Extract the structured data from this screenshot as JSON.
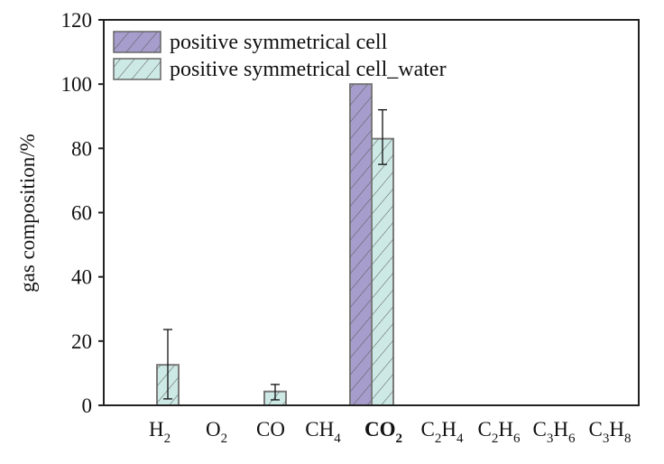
{
  "chart_data": {
    "type": "bar",
    "title": "",
    "xlabel": "",
    "ylabel": "gas composition/%",
    "ylim": [
      0,
      120
    ],
    "yticks": [
      0,
      20,
      40,
      60,
      80,
      100,
      120
    ],
    "grid": false,
    "legend_placement": "top-left",
    "categories": [
      "H2",
      "O2",
      "CO",
      "CH4",
      "CO2",
      "C2H4",
      "C2H6",
      "C3H6",
      "C3H8"
    ],
    "category_labels": [
      {
        "main": "H",
        "sub": "2"
      },
      {
        "main": "O",
        "sub": "2"
      },
      {
        "main": "CO",
        "sub": ""
      },
      {
        "main": "CH",
        "sub": "4"
      },
      {
        "main": "CO",
        "sub": "2",
        "bold": true
      },
      {
        "main": "C",
        "sub": "2",
        "main2": "H",
        "sub2": "4"
      },
      {
        "main": "C",
        "sub": "2",
        "main2": "H",
        "sub2": "6"
      },
      {
        "main": "C",
        "sub": "3",
        "main2": "H",
        "sub2": "6"
      },
      {
        "main": "C",
        "sub": "3",
        "main2": "H",
        "sub2": "8"
      }
    ],
    "series": [
      {
        "name": "positive symmetrical cell",
        "color": "#a69dcc",
        "values": [
          0,
          0,
          0,
          0,
          100,
          0,
          0,
          0,
          0
        ],
        "error_low": [
          null,
          null,
          null,
          null,
          null,
          null,
          null,
          null,
          null
        ],
        "error_high": [
          null,
          null,
          null,
          null,
          null,
          null,
          null,
          null,
          null
        ]
      },
      {
        "name": "positive symmetrical cell_water",
        "color": "#cde9e5",
        "values": [
          12.6,
          0,
          4.3,
          0,
          83,
          0,
          0,
          0,
          0
        ],
        "error_low": [
          2,
          null,
          1.7,
          null,
          75,
          null,
          null,
          null,
          null
        ],
        "error_high": [
          23.6,
          null,
          6.5,
          null,
          92,
          null,
          null,
          null,
          null
        ]
      }
    ]
  }
}
